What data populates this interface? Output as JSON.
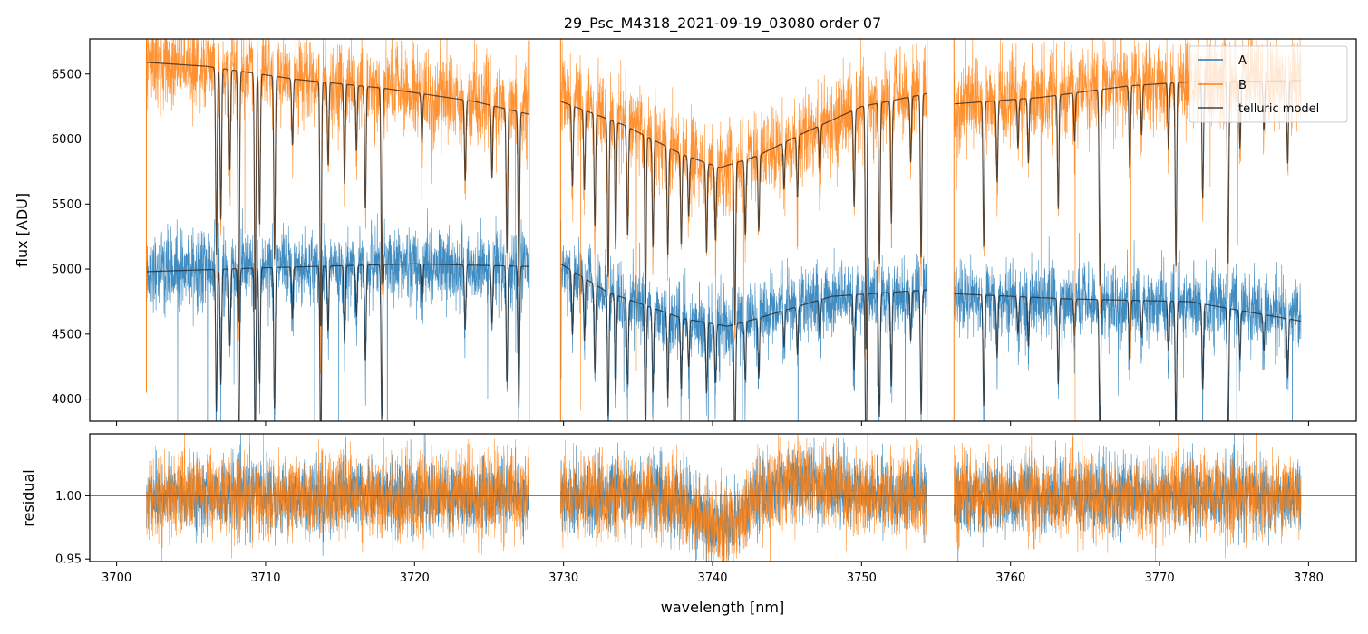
{
  "chart_data": [
    {
      "type": "line",
      "title": "29_Psc_M4318_2021-09-19_03080  order 07",
      "xlabel": "",
      "ylabel": "flux [ADU]",
      "xlim": [
        3698.2,
        3783.2
      ],
      "ylim": [
        3830,
        6770
      ],
      "xticks": [
        3700,
        3710,
        3720,
        3730,
        3740,
        3750,
        3760,
        3770,
        3780
      ],
      "yticks": [
        4000,
        4500,
        5000,
        5500,
        6000,
        6500
      ],
      "ytick_labels": [
        "4000",
        "4500",
        "5000",
        "5500",
        "6000",
        "6500"
      ],
      "segments": [
        [
          3702.0,
          3727.7
        ],
        [
          3729.8,
          3754.4
        ],
        [
          3756.2,
          3779.5
        ]
      ],
      "series": [
        {
          "name": "A",
          "color": "#1f77b4",
          "noise": 140,
          "continuum": [
            [
              3702,
              4990
            ],
            [
              3712,
              5010
            ],
            [
              3722,
              5020
            ],
            [
              3727.7,
              5000
            ],
            [
              3729.8,
              5020
            ],
            [
              3733,
              4820
            ],
            [
              3738,
              4600
            ],
            [
              3741,
              4500
            ],
            [
              3743,
              4650
            ],
            [
              3748,
              4780
            ],
            [
              3754.4,
              4820
            ],
            [
              3756.2,
              4800
            ],
            [
              3762,
              4760
            ],
            [
              3770,
              4740
            ],
            [
              3776,
              4700
            ],
            [
              3779.5,
              4620
            ]
          ]
        },
        {
          "name": "B",
          "color": "#ff7f0e",
          "noise": 170,
          "continuum": [
            [
              3702,
              6600
            ],
            [
              3706,
              6560
            ],
            [
              3712,
              6470
            ],
            [
              3718,
              6400
            ],
            [
              3724,
              6300
            ],
            [
              3727.7,
              6220
            ],
            [
              3729.8,
              6300
            ],
            [
              3734,
              6120
            ],
            [
              3738,
              5900
            ],
            [
              3740.5,
              5760
            ],
            [
              3743,
              5850
            ],
            [
              3746,
              6030
            ],
            [
              3750,
              6250
            ],
            [
              3754.4,
              6400
            ],
            [
              3756.2,
              6300
            ],
            [
              3762,
              6320
            ],
            [
              3768,
              6420
            ],
            [
              3772,
              6450
            ],
            [
              3779.5,
              6460
            ]
          ]
        },
        {
          "name": "telluric model",
          "color": "#222222"
        }
      ],
      "model_continuum": {
        "A": [
          [
            3702,
            4980
          ],
          [
            3710,
            5010
          ],
          [
            3720,
            5040
          ],
          [
            3727.7,
            5020
          ],
          [
            3729.8,
            5040
          ],
          [
            3733,
            4820
          ],
          [
            3738,
            4620
          ],
          [
            3741,
            4560
          ],
          [
            3743,
            4620
          ],
          [
            3748,
            4790
          ],
          [
            3754.4,
            4840
          ],
          [
            3756.2,
            4810
          ],
          [
            3764,
            4770
          ],
          [
            3772,
            4750
          ],
          [
            3779.5,
            4600
          ]
        ],
        "B": [
          [
            3702,
            6590
          ],
          [
            3706,
            6560
          ],
          [
            3712,
            6460
          ],
          [
            3718,
            6390
          ],
          [
            3724,
            6290
          ],
          [
            3727.7,
            6190
          ],
          [
            3729.8,
            6290
          ],
          [
            3734,
            6110
          ],
          [
            3738,
            5880
          ],
          [
            3740.5,
            5780
          ],
          [
            3743,
            5870
          ],
          [
            3746,
            6040
          ],
          [
            3750,
            6250
          ],
          [
            3754.4,
            6350
          ],
          [
            3756.2,
            6270
          ],
          [
            3762,
            6320
          ],
          [
            3768,
            6410
          ],
          [
            3772,
            6440
          ],
          [
            3779.5,
            6450
          ]
        ]
      },
      "telluric_lines": [
        [
          3706.7,
          0.22
        ],
        [
          3707.0,
          0.18
        ],
        [
          3707.6,
          0.12
        ],
        [
          3708.2,
          0.3
        ],
        [
          3709.3,
          0.28
        ],
        [
          3709.6,
          0.18
        ],
        [
          3710.6,
          0.22
        ],
        [
          3711.8,
          0.08
        ],
        [
          3713.7,
          0.3
        ],
        [
          3714.2,
          0.1
        ],
        [
          3715.3,
          0.12
        ],
        [
          3716.1,
          0.08
        ],
        [
          3716.7,
          0.15
        ],
        [
          3717.8,
          0.24
        ],
        [
          3720.5,
          0.06
        ],
        [
          3723.4,
          0.1
        ],
        [
          3725.2,
          0.09
        ],
        [
          3726.2,
          0.18
        ],
        [
          3727.0,
          0.22
        ],
        [
          3730.6,
          0.1
        ],
        [
          3731.4,
          0.1
        ],
        [
          3732.1,
          0.14
        ],
        [
          3733.0,
          0.2
        ],
        [
          3733.5,
          0.16
        ],
        [
          3734.3,
          0.14
        ],
        [
          3735.5,
          0.22
        ],
        [
          3736.0,
          0.14
        ],
        [
          3737.0,
          0.14
        ],
        [
          3737.9,
          0.12
        ],
        [
          3738.4,
          0.08
        ],
        [
          3739.6,
          0.12
        ],
        [
          3740.2,
          0.1
        ],
        [
          3741.5,
          0.22
        ],
        [
          3742.2,
          0.1
        ],
        [
          3743.1,
          0.1
        ],
        [
          3744.8,
          0.06
        ],
        [
          3745.7,
          0.08
        ],
        [
          3747.2,
          0.06
        ],
        [
          3749.5,
          0.12
        ],
        [
          3750.3,
          0.3
        ],
        [
          3751.2,
          0.2
        ],
        [
          3752.0,
          0.15
        ],
        [
          3753.3,
          0.08
        ],
        [
          3754.0,
          0.2
        ],
        [
          3758.2,
          0.18
        ],
        [
          3759.1,
          0.1
        ],
        [
          3760.5,
          0.06
        ],
        [
          3761.2,
          0.08
        ],
        [
          3763.2,
          0.14
        ],
        [
          3764.3,
          0.06
        ],
        [
          3766.0,
          0.24
        ],
        [
          3768.0,
          0.1
        ],
        [
          3768.8,
          0.06
        ],
        [
          3770.6,
          0.08
        ],
        [
          3771.1,
          0.22
        ],
        [
          3772.9,
          0.14
        ],
        [
          3774.6,
          0.22
        ],
        [
          3775.4,
          0.08
        ],
        [
          3777.0,
          0.06
        ],
        [
          3778.6,
          0.1
        ]
      ],
      "legend": {
        "position": "upper right",
        "entries": [
          "A",
          "B",
          "telluric model"
        ]
      }
    },
    {
      "type": "line",
      "title": "",
      "xlabel": "wavelength [nm]",
      "ylabel": "residual",
      "xlim": [
        3698.2,
        3783.2
      ],
      "ylim": [
        0.948,
        1.049
      ],
      "xticks": [
        3700,
        3710,
        3720,
        3730,
        3740,
        3750,
        3760,
        3770,
        3780
      ],
      "xtick_labels": [
        "3700",
        "3710",
        "3720",
        "3730",
        "3740",
        "3750",
        "3760",
        "3770",
        "3780"
      ],
      "yticks": [
        0.95,
        1.0
      ],
      "ytick_labels": [
        "0.95",
        "1.00"
      ],
      "reference_line": 1.0,
      "series": [
        {
          "name": "A",
          "color": "#1f77b4",
          "center": 1.0,
          "noise": 0.014
        },
        {
          "name": "B",
          "color": "#ff7f0e",
          "center": 1.0,
          "noise": 0.016
        }
      ],
      "dip": {
        "center": 3740.5,
        "width": 2.2,
        "depth": 0.025
      },
      "bump": {
        "center": 3746,
        "width": 3.0,
        "height": 0.012
      }
    }
  ]
}
